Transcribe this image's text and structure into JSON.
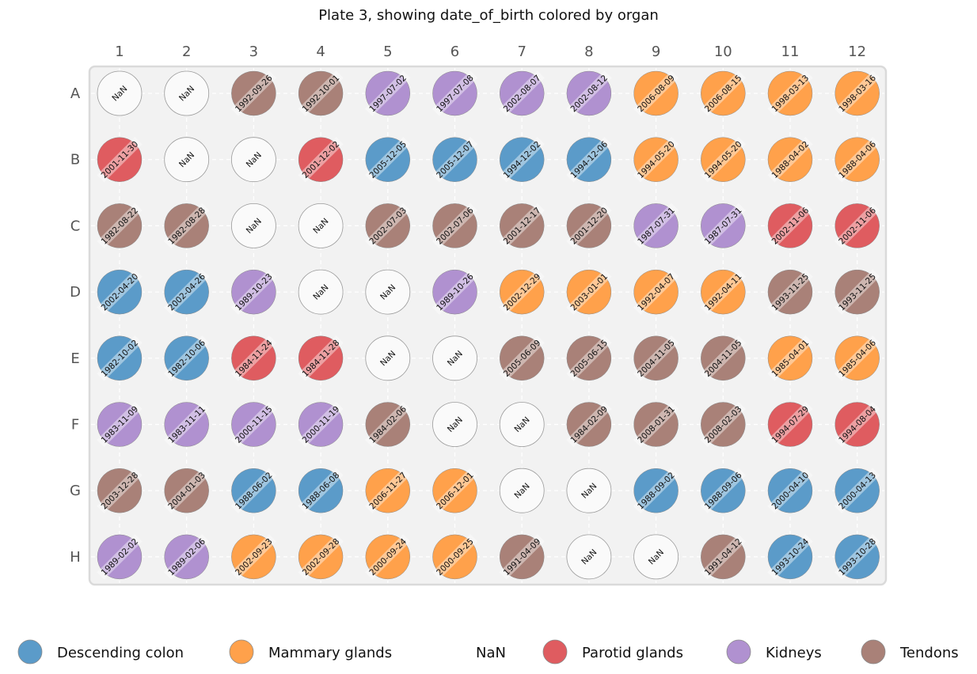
{
  "chart_data": {
    "type": "plate",
    "title": "Plate 3, showing date_of_birth colored by organ",
    "columns": [
      "1",
      "2",
      "3",
      "4",
      "5",
      "6",
      "7",
      "8",
      "9",
      "10",
      "11",
      "12"
    ],
    "rows": [
      "A",
      "B",
      "C",
      "D",
      "E",
      "F",
      "G",
      "H"
    ],
    "categories": {
      "Descending colon": "#5b9bc9",
      "Mammary glands": "#ffa14b",
      "NaN": "#fafafa",
      "Parotid glands": "#df5c60",
      "Kidneys": "#b091d0",
      "Tendons": "#a98178"
    },
    "legend_order": [
      "Descending colon",
      "Mammary glands",
      "NaN",
      "Parotid glands",
      "Kidneys",
      "Tendons"
    ],
    "wells": [
      [
        [
          "NaN",
          "NaN"
        ],
        [
          "NaN",
          "NaN"
        ],
        [
          "1992-09-26",
          "Tendons"
        ],
        [
          "1992-10-01",
          "Tendons"
        ],
        [
          "1997-07-02",
          "Kidneys"
        ],
        [
          "1997-07-08",
          "Kidneys"
        ],
        [
          "2002-08-07",
          "Kidneys"
        ],
        [
          "2002-08-12",
          "Kidneys"
        ],
        [
          "2006-08-09",
          "Mammary glands"
        ],
        [
          "2006-08-15",
          "Mammary glands"
        ],
        [
          "1998-03-13",
          "Mammary glands"
        ],
        [
          "1998-03-16",
          "Mammary glands"
        ]
      ],
      [
        [
          "2001-11-30",
          "Parotid glands"
        ],
        [
          "NaN",
          "NaN"
        ],
        [
          "NaN",
          "NaN"
        ],
        [
          "2001-12-02",
          "Parotid glands"
        ],
        [
          "2005-12-05",
          "Descending colon"
        ],
        [
          "2005-12-07",
          "Descending colon"
        ],
        [
          "1994-12-02",
          "Descending colon"
        ],
        [
          "1994-12-06",
          "Descending colon"
        ],
        [
          "1994-05-20",
          "Mammary glands"
        ],
        [
          "1994-05-20",
          "Mammary glands"
        ],
        [
          "1988-04-02",
          "Mammary glands"
        ],
        [
          "1988-04-06",
          "Mammary glands"
        ]
      ],
      [
        [
          "1982-08-22",
          "Tendons"
        ],
        [
          "1982-08-28",
          "Tendons"
        ],
        [
          "NaN",
          "NaN"
        ],
        [
          "NaN",
          "NaN"
        ],
        [
          "2002-07-03",
          "Tendons"
        ],
        [
          "2002-07-06",
          "Tendons"
        ],
        [
          "2001-12-17",
          "Tendons"
        ],
        [
          "2001-12-20",
          "Tendons"
        ],
        [
          "1987-07-31",
          "Kidneys"
        ],
        [
          "1987-07-31",
          "Kidneys"
        ],
        [
          "2002-11-06",
          "Parotid glands"
        ],
        [
          "2002-11-06",
          "Parotid glands"
        ]
      ],
      [
        [
          "2002-04-20",
          "Descending colon"
        ],
        [
          "2002-04-26",
          "Descending colon"
        ],
        [
          "1989-10-23",
          "Kidneys"
        ],
        [
          "NaN",
          "NaN"
        ],
        [
          "NaN",
          "NaN"
        ],
        [
          "1989-10-26",
          "Kidneys"
        ],
        [
          "2002-12-29",
          "Mammary glands"
        ],
        [
          "2003-01-01",
          "Mammary glands"
        ],
        [
          "1992-04-07",
          "Mammary glands"
        ],
        [
          "1992-04-11",
          "Mammary glands"
        ],
        [
          "1993-11-25",
          "Tendons"
        ],
        [
          "1993-11-25",
          "Tendons"
        ]
      ],
      [
        [
          "1982-10-02",
          "Descending colon"
        ],
        [
          "1982-10-06",
          "Descending colon"
        ],
        [
          "1984-11-24",
          "Parotid glands"
        ],
        [
          "1984-11-28",
          "Parotid glands"
        ],
        [
          "NaN",
          "NaN"
        ],
        [
          "NaN",
          "NaN"
        ],
        [
          "2005-06-09",
          "Tendons"
        ],
        [
          "2005-06-15",
          "Tendons"
        ],
        [
          "2004-11-05",
          "Tendons"
        ],
        [
          "2004-11-05",
          "Tendons"
        ],
        [
          "1985-04-01",
          "Mammary glands"
        ],
        [
          "1985-04-06",
          "Mammary glands"
        ]
      ],
      [
        [
          "1983-11-09",
          "Kidneys"
        ],
        [
          "1983-11-11",
          "Kidneys"
        ],
        [
          "2000-11-15",
          "Kidneys"
        ],
        [
          "2000-11-19",
          "Kidneys"
        ],
        [
          "1984-02-06",
          "Tendons"
        ],
        [
          "NaN",
          "NaN"
        ],
        [
          "NaN",
          "NaN"
        ],
        [
          "1984-02-09",
          "Tendons"
        ],
        [
          "2008-01-31",
          "Tendons"
        ],
        [
          "2008-02-03",
          "Tendons"
        ],
        [
          "1994-07-29",
          "Parotid glands"
        ],
        [
          "1994-08-04",
          "Parotid glands"
        ]
      ],
      [
        [
          "2003-12-28",
          "Tendons"
        ],
        [
          "2004-01-03",
          "Tendons"
        ],
        [
          "1988-06-02",
          "Descending colon"
        ],
        [
          "1988-06-08",
          "Descending colon"
        ],
        [
          "2006-11-27",
          "Mammary glands"
        ],
        [
          "2006-12-01",
          "Mammary glands"
        ],
        [
          "NaN",
          "NaN"
        ],
        [
          "NaN",
          "NaN"
        ],
        [
          "1988-09-02",
          "Descending colon"
        ],
        [
          "1988-09-06",
          "Descending colon"
        ],
        [
          "2000-04-10",
          "Descending colon"
        ],
        [
          "2000-04-13",
          "Descending colon"
        ]
      ],
      [
        [
          "1989-02-02",
          "Kidneys"
        ],
        [
          "1989-02-06",
          "Kidneys"
        ],
        [
          "2002-09-23",
          "Mammary glands"
        ],
        [
          "2002-09-28",
          "Mammary glands"
        ],
        [
          "2000-09-24",
          "Mammary glands"
        ],
        [
          "2000-09-25",
          "Mammary glands"
        ],
        [
          "1991-04-09",
          "Tendons"
        ],
        [
          "NaN",
          "NaN"
        ],
        [
          "NaN",
          "NaN"
        ],
        [
          "1991-04-12",
          "Tendons"
        ],
        [
          "1993-10-24",
          "Descending colon"
        ],
        [
          "1993-10-28",
          "Descending colon"
        ]
      ]
    ]
  }
}
